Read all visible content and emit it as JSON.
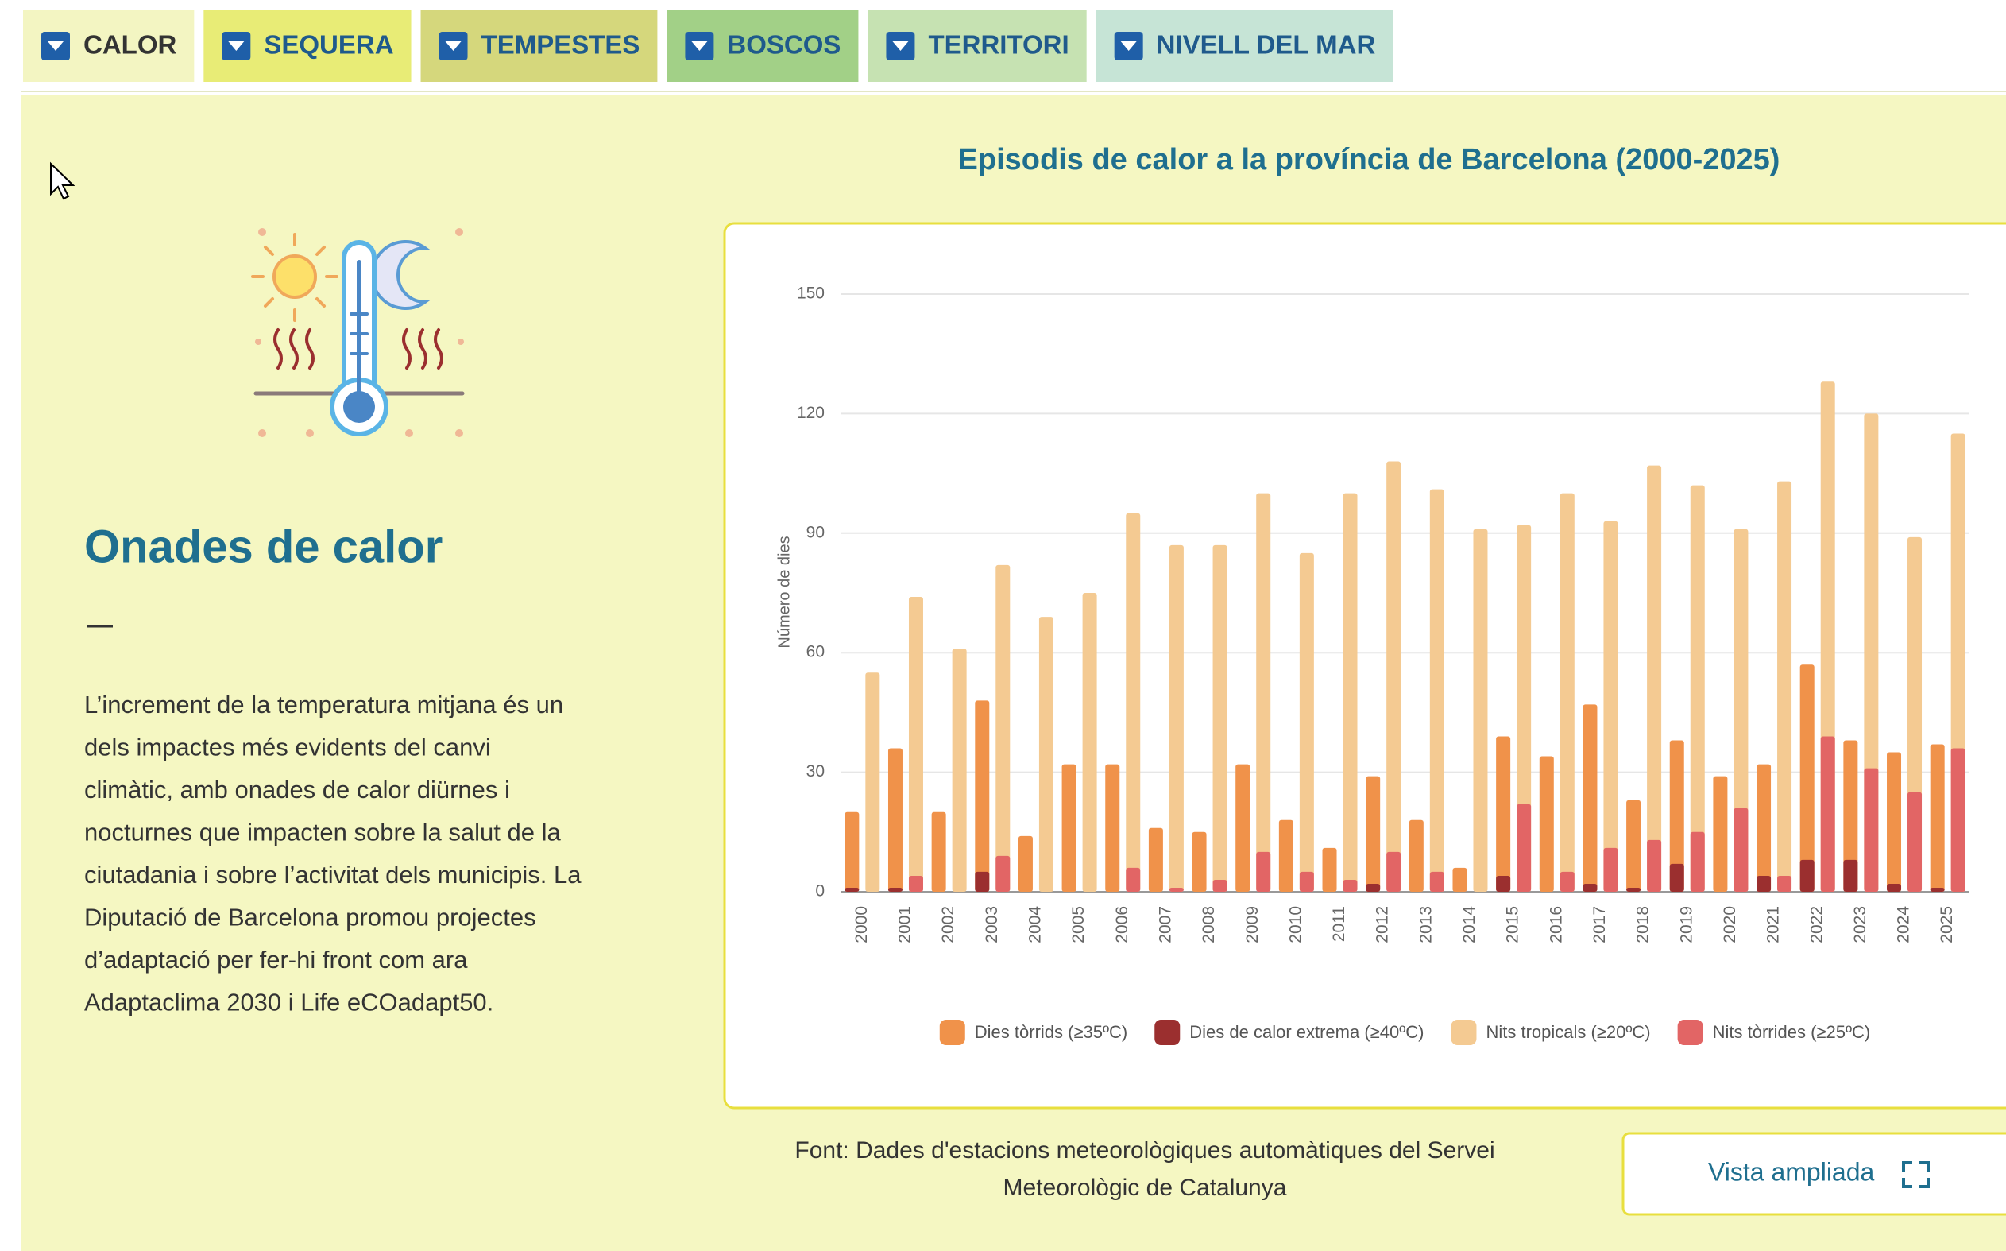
{
  "tabs": [
    {
      "label": "CALOR",
      "color": "#f3f5c2"
    },
    {
      "label": "SEQUERA",
      "color": "#e8ec76"
    },
    {
      "label": "TEMPESTES",
      "color": "#d5d77c"
    },
    {
      "label": "BOSCOS",
      "color": "#a2d087"
    },
    {
      "label": "TERRITORI",
      "color": "#c6e2b2"
    },
    {
      "label": "NIVELL DEL MAR",
      "color": "#c6e4d6"
    }
  ],
  "heading": "Onades de calor",
  "paragraph": [
    "L’increment de la temperatura mitjana és un",
    "dels impactes més evidents del canvi",
    "climàtic, amb onades de calor diürnes i",
    "nocturnes que impacten sobre la salut de la",
    "ciutadania i sobre l’activitat dels municipis. La",
    "Diputació de Barcelona promou projectes",
    "d’adaptació per fer-hi front com ara",
    "Adaptaclima 2030 i Life eCOadapt50."
  ],
  "button": "Vista ampliada",
  "chart_data": {
    "type": "bar",
    "title": "Episodis de calor a la província de Barcelona (2000-2025)",
    "y_label": "Número de dies",
    "categories": [
      "2000",
      "2001",
      "2002",
      "2003",
      "2004",
      "2005",
      "2006",
      "2007",
      "2008",
      "2009",
      "2010",
      "2011",
      "2012",
      "2013",
      "2014",
      "2015",
      "2016",
      "2017",
      "2018",
      "2019",
      "2020",
      "2021",
      "2022",
      "2023",
      "2024",
      "2025"
    ],
    "series": [
      {
        "name": "Dies tòrrids (≥35ºC)",
        "color": "#f0924a",
        "values": [
          20,
          36,
          20,
          48,
          14,
          32,
          32,
          16,
          15,
          32,
          18,
          11,
          29,
          18,
          6,
          39,
          34,
          47,
          23,
          38,
          29,
          32,
          57,
          38,
          35,
          37
        ]
      },
      {
        "name": "Dies de calor extrema (≥40ºC)",
        "color": "#9b2f2f",
        "values": [
          1,
          1,
          0,
          5,
          0,
          0,
          0,
          0,
          0,
          0,
          0,
          0,
          2,
          0,
          0,
          4,
          0,
          2,
          1,
          7,
          0,
          4,
          8,
          8,
          2,
          1
        ]
      },
      {
        "name": "Nits tropicals (≥20ºC)",
        "color": "#f4ca92",
        "values": [
          55,
          74,
          61,
          82,
          69,
          75,
          95,
          87,
          87,
          100,
          85,
          100,
          108,
          101,
          91,
          92,
          100,
          93,
          107,
          102,
          91,
          103,
          128,
          120,
          89,
          115
        ]
      },
      {
        "name": "Nits tòrrides (≥25ºC)",
        "color": "#e26565",
        "values": [
          0,
          4,
          0,
          9,
          0,
          0,
          6,
          1,
          3,
          10,
          5,
          3,
          10,
          5,
          0,
          22,
          5,
          11,
          13,
          15,
          21,
          4,
          39,
          31,
          25,
          36
        ]
      }
    ],
    "ylim": [
      0,
      150
    ],
    "yticks": [
      0,
      30,
      60,
      90,
      120,
      150
    ],
    "grid": true,
    "legend": "bottom",
    "source": [
      "Font: Dades d'estacions meteorològiques automàtiques del Servei",
      "Meteorològic de Catalunya"
    ]
  }
}
